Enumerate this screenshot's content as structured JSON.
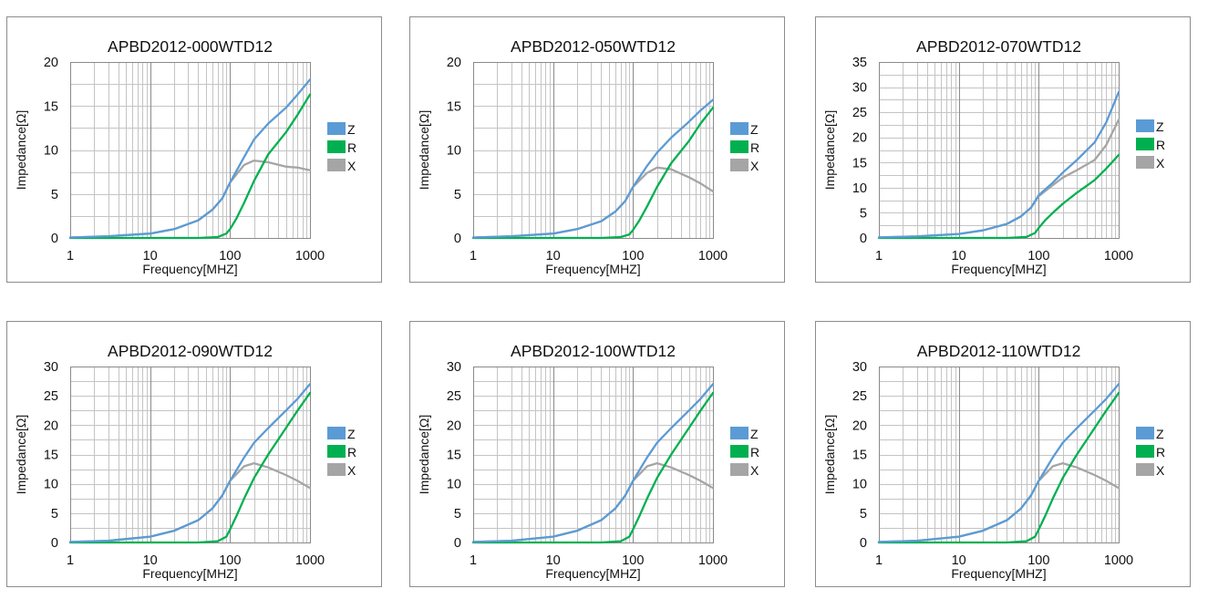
{
  "chart_data": [
    {
      "type": "line",
      "title": "APBD2012-000WTD12",
      "xlabel": "Frequency[MHZ]",
      "ylabel": "Impedance[Ω]",
      "xscale": "log",
      "xlim": [
        1,
        1000
      ],
      "ylim": [
        0,
        20
      ],
      "yticks": [
        0,
        5,
        10,
        15,
        20
      ],
      "xticks": [
        1,
        10,
        100,
        1000
      ],
      "grid": true,
      "legend_position": "right",
      "series": [
        {
          "name": "Z",
          "color": "#5b9bd5",
          "x": [
            1,
            3,
            10,
            20,
            40,
            60,
            80,
            100,
            150,
            200,
            300,
            500,
            700,
            1000
          ],
          "y": [
            0.05,
            0.2,
            0.5,
            1.0,
            2.0,
            3.2,
            4.5,
            6.3,
            9.2,
            11.2,
            13.0,
            14.8,
            16.3,
            18.0
          ]
        },
        {
          "name": "R",
          "color": "#00b050",
          "x": [
            1,
            10,
            40,
            70,
            90,
            100,
            120,
            150,
            200,
            300,
            500,
            700,
            1000
          ],
          "y": [
            0,
            0,
            0,
            0.1,
            0.5,
            1.0,
            2.2,
            4.0,
            6.5,
            9.5,
            12.0,
            14.0,
            16.3
          ]
        },
        {
          "name": "X",
          "color": "#a5a5a5",
          "x": [
            1,
            3,
            10,
            20,
            40,
            60,
            80,
            100,
            150,
            200,
            300,
            500,
            700,
            1000
          ],
          "y": [
            0.05,
            0.2,
            0.5,
            1.0,
            2.0,
            3.2,
            4.5,
            6.3,
            8.3,
            8.8,
            8.6,
            8.1,
            8.0,
            7.7
          ]
        }
      ]
    },
    {
      "type": "line",
      "title": "APBD2012-050WTD12",
      "xlabel": "Frequency[MHZ]",
      "ylabel": "Impedance[Ω]",
      "xscale": "log",
      "xlim": [
        1,
        1000
      ],
      "ylim": [
        0,
        20
      ],
      "yticks": [
        0,
        5,
        10,
        15,
        20
      ],
      "xticks": [
        1,
        10,
        100,
        1000
      ],
      "grid": true,
      "legend_position": "right",
      "series": [
        {
          "name": "Z",
          "color": "#5b9bd5",
          "x": [
            1,
            3,
            10,
            20,
            40,
            60,
            80,
            100,
            150,
            200,
            300,
            500,
            700,
            1000
          ],
          "y": [
            0.05,
            0.2,
            0.5,
            1.0,
            1.9,
            3.0,
            4.2,
            5.8,
            8.2,
            9.7,
            11.4,
            13.2,
            14.5,
            15.7
          ]
        },
        {
          "name": "R",
          "color": "#00b050",
          "x": [
            1,
            10,
            40,
            70,
            90,
            100,
            120,
            150,
            200,
            300,
            500,
            700,
            1000
          ],
          "y": [
            0,
            0,
            0,
            0.1,
            0.4,
            0.9,
            2.0,
            3.6,
            5.8,
            8.5,
            11.0,
            13.0,
            14.8
          ]
        },
        {
          "name": "X",
          "color": "#a5a5a5",
          "x": [
            1,
            3,
            10,
            20,
            40,
            60,
            80,
            100,
            150,
            200,
            300,
            500,
            700,
            1000
          ],
          "y": [
            0.05,
            0.2,
            0.5,
            1.0,
            1.9,
            3.0,
            4.2,
            5.8,
            7.4,
            8.0,
            7.8,
            6.9,
            6.2,
            5.3
          ]
        }
      ]
    },
    {
      "type": "line",
      "title": "APBD2012-070WTD12",
      "xlabel": "Frequency[MHZ]",
      "ylabel": "Impedance[Ω]",
      "xscale": "log",
      "xlim": [
        1,
        1000
      ],
      "ylim": [
        0,
        35
      ],
      "yticks": [
        0,
        5,
        10,
        15,
        20,
        25,
        30,
        35
      ],
      "xticks": [
        1,
        10,
        100,
        1000
      ],
      "grid": true,
      "legend_position": "right",
      "series": [
        {
          "name": "Z",
          "color": "#5b9bd5",
          "x": [
            1,
            3,
            10,
            20,
            40,
            60,
            80,
            100,
            150,
            200,
            300,
            500,
            700,
            1000
          ],
          "y": [
            0.1,
            0.3,
            0.8,
            1.5,
            2.8,
            4.3,
            6.0,
            8.5,
            11.0,
            13.0,
            15.5,
            19.0,
            23.0,
            29.0
          ]
        },
        {
          "name": "R",
          "color": "#00b050",
          "x": [
            1,
            10,
            40,
            70,
            90,
            100,
            120,
            150,
            200,
            300,
            500,
            700,
            1000
          ],
          "y": [
            0,
            0,
            0,
            0.2,
            1.0,
            2.0,
            3.5,
            5.0,
            6.8,
            9.0,
            11.5,
            13.8,
            16.5
          ]
        },
        {
          "name": "X",
          "color": "#a5a5a5",
          "x": [
            1,
            3,
            10,
            20,
            40,
            60,
            80,
            100,
            150,
            200,
            300,
            500,
            700,
            1000
          ],
          "y": [
            0.1,
            0.3,
            0.8,
            1.5,
            2.8,
            4.3,
            6.0,
            8.3,
            10.5,
            12.0,
            13.5,
            15.5,
            18.5,
            23.5
          ]
        }
      ]
    },
    {
      "type": "line",
      "title": "APBD2012-090WTD12",
      "xlabel": "Frequency[MHZ]",
      "ylabel": "Impedance[Ω]",
      "xscale": "log",
      "xlim": [
        1,
        1000
      ],
      "ylim": [
        0,
        30
      ],
      "yticks": [
        0,
        5,
        10,
        15,
        20,
        25,
        30
      ],
      "xticks": [
        1,
        10,
        100,
        1000
      ],
      "grid": true,
      "legend_position": "right",
      "series": [
        {
          "name": "Z",
          "color": "#5b9bd5",
          "x": [
            1,
            3,
            10,
            20,
            40,
            60,
            80,
            100,
            150,
            200,
            300,
            500,
            700,
            1000
          ],
          "y": [
            0.1,
            0.3,
            1.0,
            2.0,
            3.8,
            5.8,
            8.0,
            10.5,
            14.5,
            17.0,
            19.5,
            22.5,
            24.5,
            27.0
          ]
        },
        {
          "name": "R",
          "color": "#00b050",
          "x": [
            1,
            10,
            40,
            70,
            90,
            100,
            120,
            150,
            200,
            300,
            500,
            700,
            1000
          ],
          "y": [
            0,
            0,
            0,
            0.2,
            1.0,
            2.2,
            4.5,
            7.5,
            11.0,
            15.0,
            19.5,
            22.5,
            25.5
          ]
        },
        {
          "name": "X",
          "color": "#a5a5a5",
          "x": [
            1,
            3,
            10,
            20,
            40,
            60,
            80,
            100,
            150,
            200,
            300,
            500,
            700,
            1000
          ],
          "y": [
            0.1,
            0.3,
            1.0,
            2.0,
            3.8,
            5.8,
            8.0,
            10.5,
            13.0,
            13.5,
            12.8,
            11.5,
            10.5,
            9.3
          ]
        }
      ]
    },
    {
      "type": "line",
      "title": "APBD2012-100WTD12",
      "xlabel": "Frequency[MHZ]",
      "ylabel": "Impedance[Ω]",
      "xscale": "log",
      "xlim": [
        1,
        1000
      ],
      "ylim": [
        0,
        30
      ],
      "yticks": [
        0,
        5,
        10,
        15,
        20,
        25,
        30
      ],
      "xticks": [
        1,
        10,
        100,
        1000
      ],
      "grid": true,
      "legend_position": "right",
      "series": [
        {
          "name": "Z",
          "color": "#5b9bd5",
          "x": [
            1,
            3,
            10,
            20,
            40,
            60,
            80,
            100,
            150,
            200,
            300,
            500,
            700,
            1000
          ],
          "y": [
            0.1,
            0.3,
            1.0,
            2.0,
            3.8,
            5.8,
            8.0,
            10.5,
            14.5,
            17.0,
            19.5,
            22.5,
            24.5,
            27.0
          ]
        },
        {
          "name": "R",
          "color": "#00b050",
          "x": [
            1,
            10,
            40,
            70,
            90,
            100,
            120,
            150,
            200,
            300,
            500,
            700,
            1000
          ],
          "y": [
            0,
            0,
            0,
            0.2,
            1.0,
            2.2,
            4.5,
            7.5,
            11.0,
            15.0,
            19.5,
            22.5,
            25.5
          ]
        },
        {
          "name": "X",
          "color": "#a5a5a5",
          "x": [
            1,
            3,
            10,
            20,
            40,
            60,
            80,
            100,
            150,
            200,
            300,
            500,
            700,
            1000
          ],
          "y": [
            0.1,
            0.3,
            1.0,
            2.0,
            3.8,
            5.8,
            8.0,
            10.5,
            13.0,
            13.5,
            12.8,
            11.5,
            10.5,
            9.3
          ]
        }
      ]
    },
    {
      "type": "line",
      "title": "APBD2012-110WTD12",
      "xlabel": "Frequency[MHZ]",
      "ylabel": "Impedance[Ω]",
      "xscale": "log",
      "xlim": [
        1,
        1000
      ],
      "ylim": [
        0,
        30
      ],
      "yticks": [
        0,
        5,
        10,
        15,
        20,
        25,
        30
      ],
      "xticks": [
        1,
        10,
        100,
        1000
      ],
      "grid": true,
      "legend_position": "right",
      "series": [
        {
          "name": "Z",
          "color": "#5b9bd5",
          "x": [
            1,
            3,
            10,
            20,
            40,
            60,
            80,
            100,
            150,
            200,
            300,
            500,
            700,
            1000
          ],
          "y": [
            0.1,
            0.3,
            1.0,
            2.0,
            3.8,
            5.8,
            8.0,
            10.5,
            14.5,
            17.0,
            19.5,
            22.5,
            24.5,
            27.0
          ]
        },
        {
          "name": "R",
          "color": "#00b050",
          "x": [
            1,
            10,
            40,
            70,
            90,
            100,
            120,
            150,
            200,
            300,
            500,
            700,
            1000
          ],
          "y": [
            0,
            0,
            0,
            0.2,
            1.0,
            2.2,
            4.5,
            7.5,
            11.0,
            15.0,
            19.5,
            22.5,
            25.5
          ]
        },
        {
          "name": "X",
          "color": "#a5a5a5",
          "x": [
            1,
            3,
            10,
            20,
            40,
            60,
            80,
            100,
            150,
            200,
            300,
            500,
            700,
            1000
          ],
          "y": [
            0.1,
            0.3,
            1.0,
            2.0,
            3.8,
            5.8,
            8.0,
            10.5,
            13.0,
            13.5,
            12.8,
            11.5,
            10.5,
            9.3
          ]
        }
      ]
    }
  ]
}
